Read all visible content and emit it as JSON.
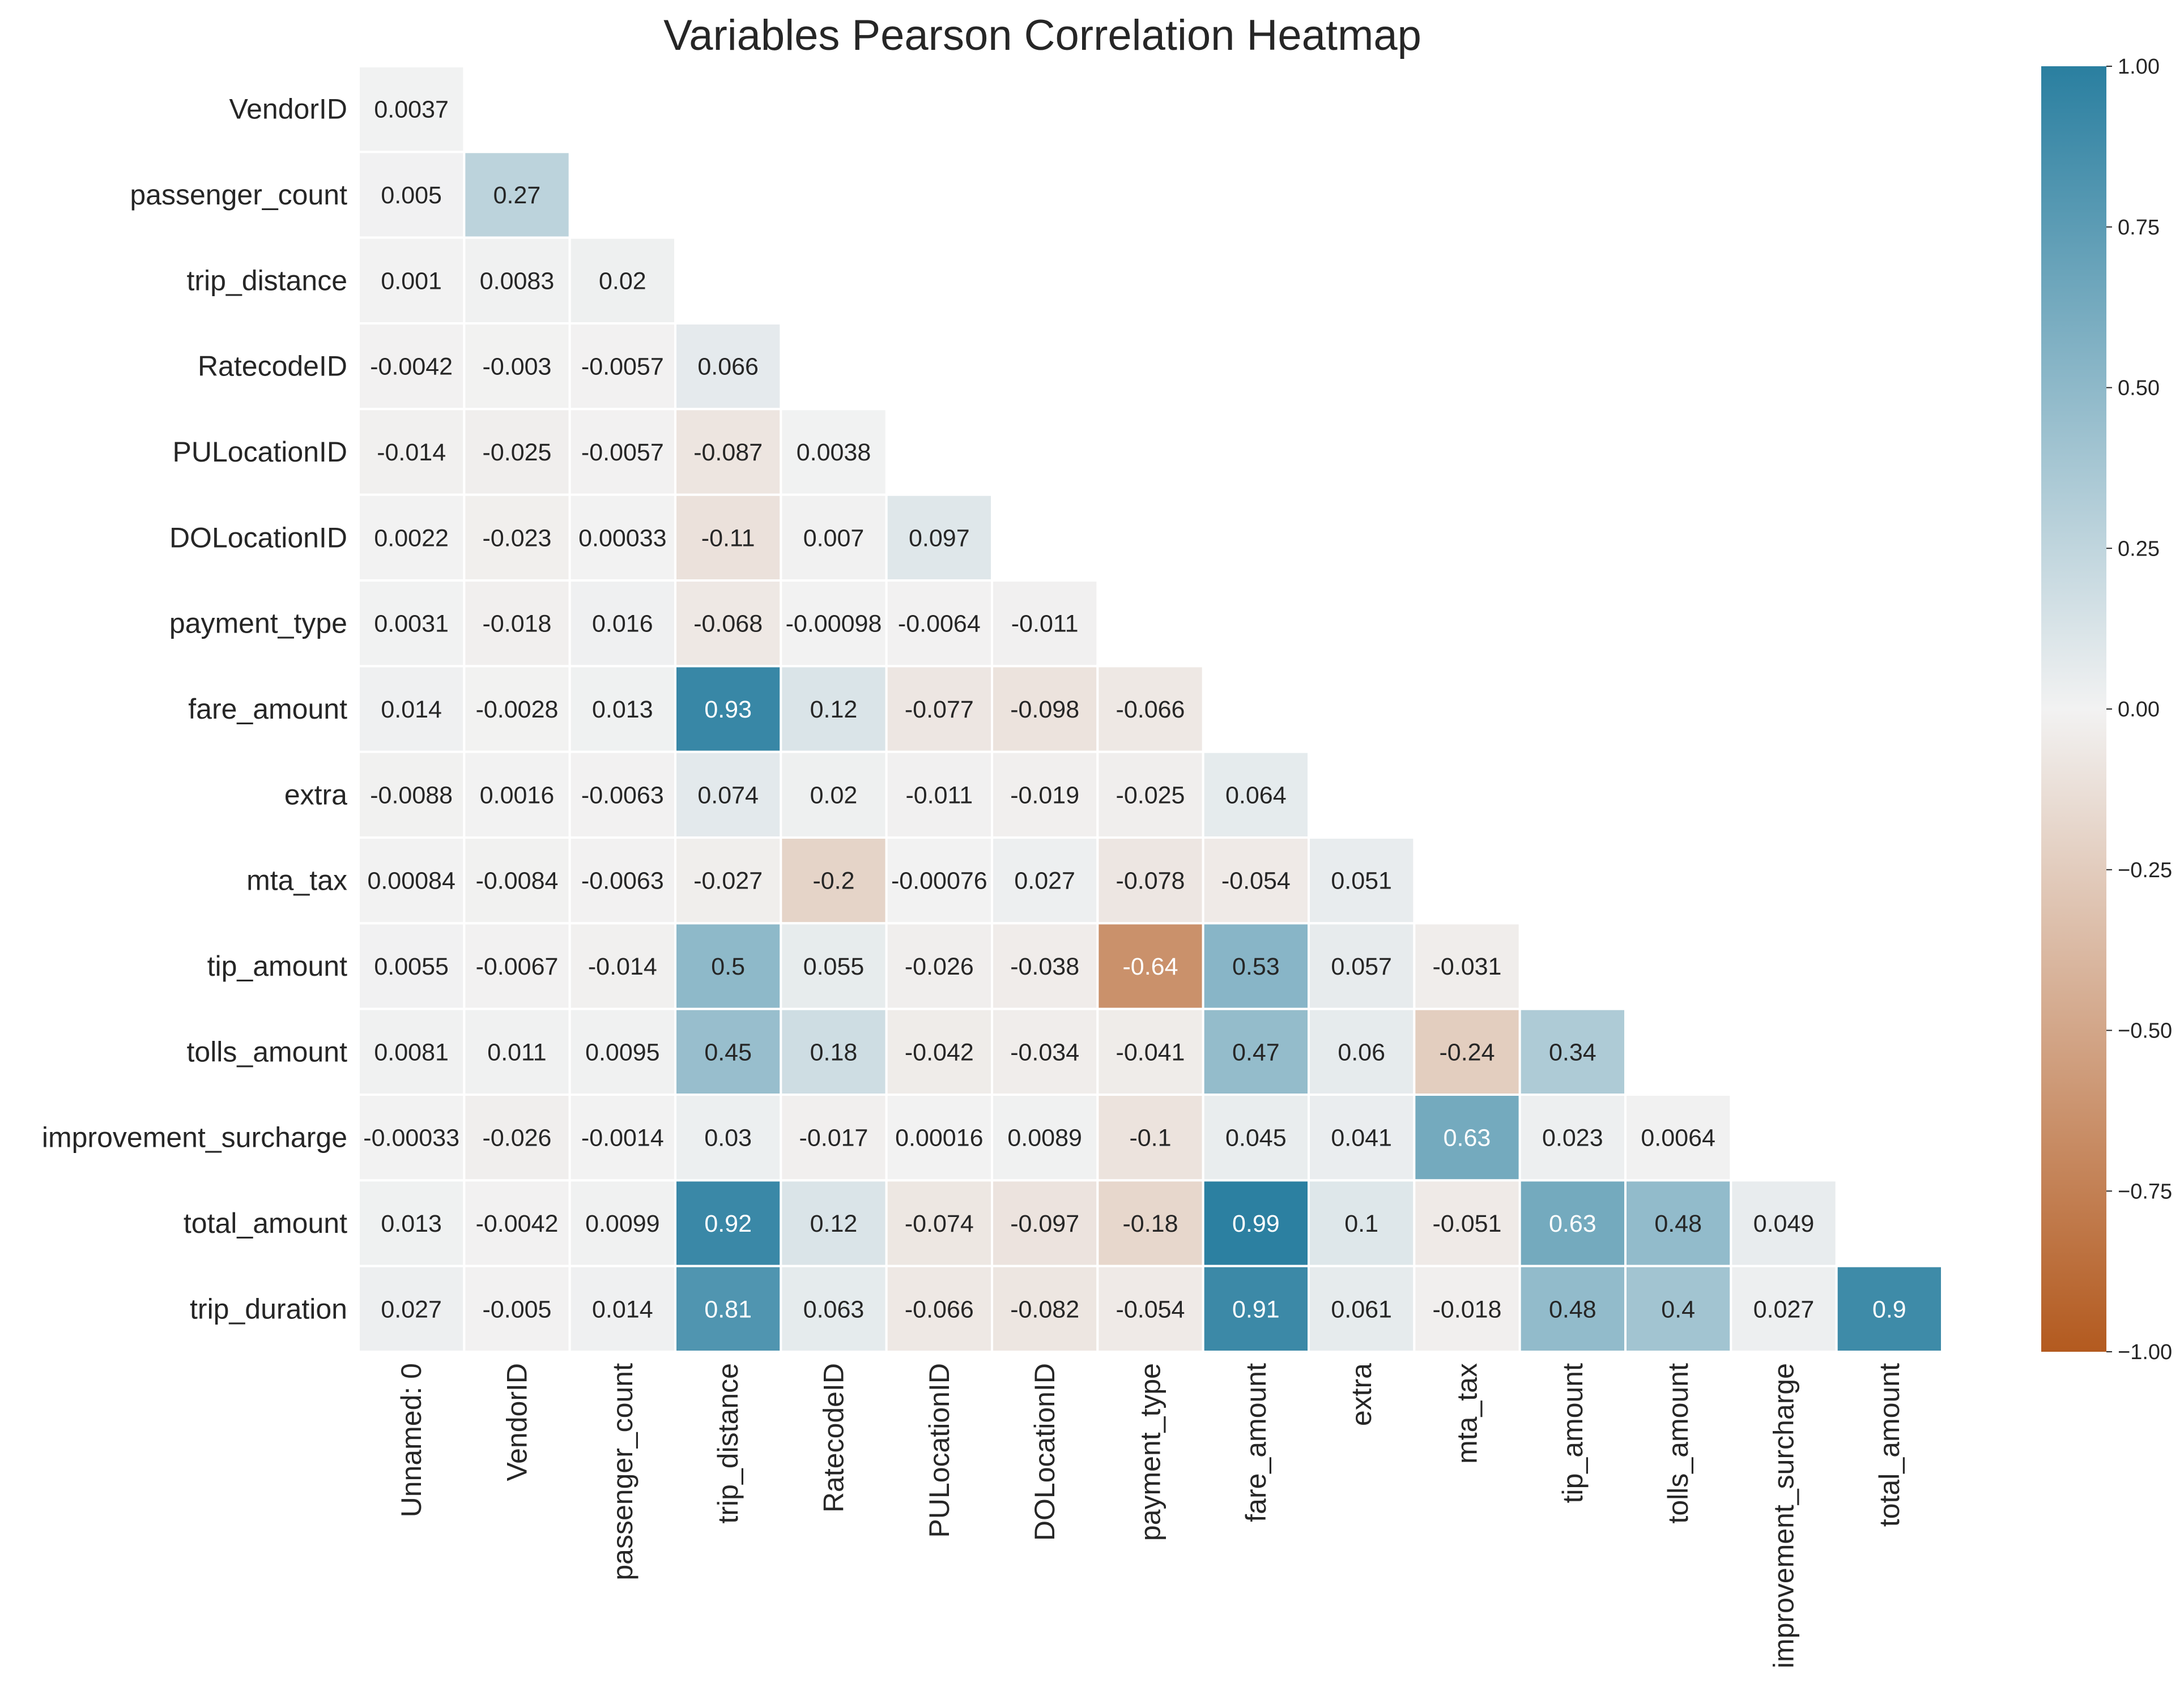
{
  "chart_data": {
    "type": "heatmap",
    "title": "Variables Pearson Correlation Heatmap",
    "row_labels": [
      "VendorID",
      "passenger_count",
      "trip_distance",
      "RatecodeID",
      "PULocationID",
      "DOLocationID",
      "payment_type",
      "fare_amount",
      "extra",
      "mta_tax",
      "tip_amount",
      "tolls_amount",
      "improvement_surcharge",
      "total_amount",
      "trip_duration"
    ],
    "col_labels": [
      "Unnamed: 0",
      "VendorID",
      "passenger_count",
      "trip_distance",
      "RatecodeID",
      "PULocationID",
      "DOLocationID",
      "payment_type",
      "fare_amount",
      "extra",
      "mta_tax",
      "tip_amount",
      "tolls_amount",
      "improvement_surcharge",
      "total_amount"
    ],
    "values": [
      [
        "0.0037"
      ],
      [
        "0.005",
        "0.27"
      ],
      [
        "0.001",
        "0.0083",
        "0.02"
      ],
      [
        "-0.0042",
        "-0.003",
        "-0.0057",
        "0.066"
      ],
      [
        "-0.014",
        "-0.025",
        "-0.0057",
        "-0.087",
        "0.0038"
      ],
      [
        "0.0022",
        "-0.023",
        "0.00033",
        "-0.11",
        "0.007",
        "0.097"
      ],
      [
        "0.0031",
        "-0.018",
        "0.016",
        "-0.068",
        "-0.00098",
        "-0.0064",
        "-0.011"
      ],
      [
        "0.014",
        "-0.0028",
        "0.013",
        "0.93",
        "0.12",
        "-0.077",
        "-0.098",
        "-0.066"
      ],
      [
        "-0.0088",
        "0.0016",
        "-0.0063",
        "0.074",
        "0.02",
        "-0.011",
        "-0.019",
        "-0.025",
        "0.064"
      ],
      [
        "0.00084",
        "-0.0084",
        "-0.0063",
        "-0.027",
        "-0.2",
        "-0.00076",
        "0.027",
        "-0.078",
        "-0.054",
        "0.051"
      ],
      [
        "0.0055",
        "-0.0067",
        "-0.014",
        "0.5",
        "0.055",
        "-0.026",
        "-0.038",
        "-0.64",
        "0.53",
        "0.057",
        "-0.031"
      ],
      [
        "0.0081",
        "0.011",
        "0.0095",
        "0.45",
        "0.18",
        "-0.042",
        "-0.034",
        "-0.041",
        "0.47",
        "0.06",
        "-0.24",
        "0.34"
      ],
      [
        "-0.00033",
        "-0.026",
        "-0.0014",
        "0.03",
        "-0.017",
        "0.00016",
        "0.0089",
        "-0.1",
        "0.045",
        "0.041",
        "0.63",
        "0.023",
        "0.0064"
      ],
      [
        "0.013",
        "-0.0042",
        "0.0099",
        "0.92",
        "0.12",
        "-0.074",
        "-0.097",
        "-0.18",
        "0.99",
        "0.1",
        "-0.051",
        "0.63",
        "0.48",
        "0.049"
      ],
      [
        "0.027",
        "-0.005",
        "0.014",
        "0.81",
        "0.063",
        "-0.066",
        "-0.082",
        "-0.054",
        "0.91",
        "0.061",
        "-0.018",
        "0.48",
        "0.4",
        "0.027",
        "0.9"
      ]
    ],
    "vmin": -1,
    "vmax": 1,
    "colorbar_ticks": [
      "1.00",
      "0.75",
      "0.50",
      "0.25",
      "0.00",
      "−0.25",
      "−0.50",
      "−0.75",
      "−1.00"
    ],
    "colormap": {
      "negative": "#b35a1f",
      "center": "#f2f2f2",
      "positive": "#2a7fa0"
    },
    "lower_triangle_only": true,
    "grid": false,
    "legend": "colorbar-right"
  }
}
